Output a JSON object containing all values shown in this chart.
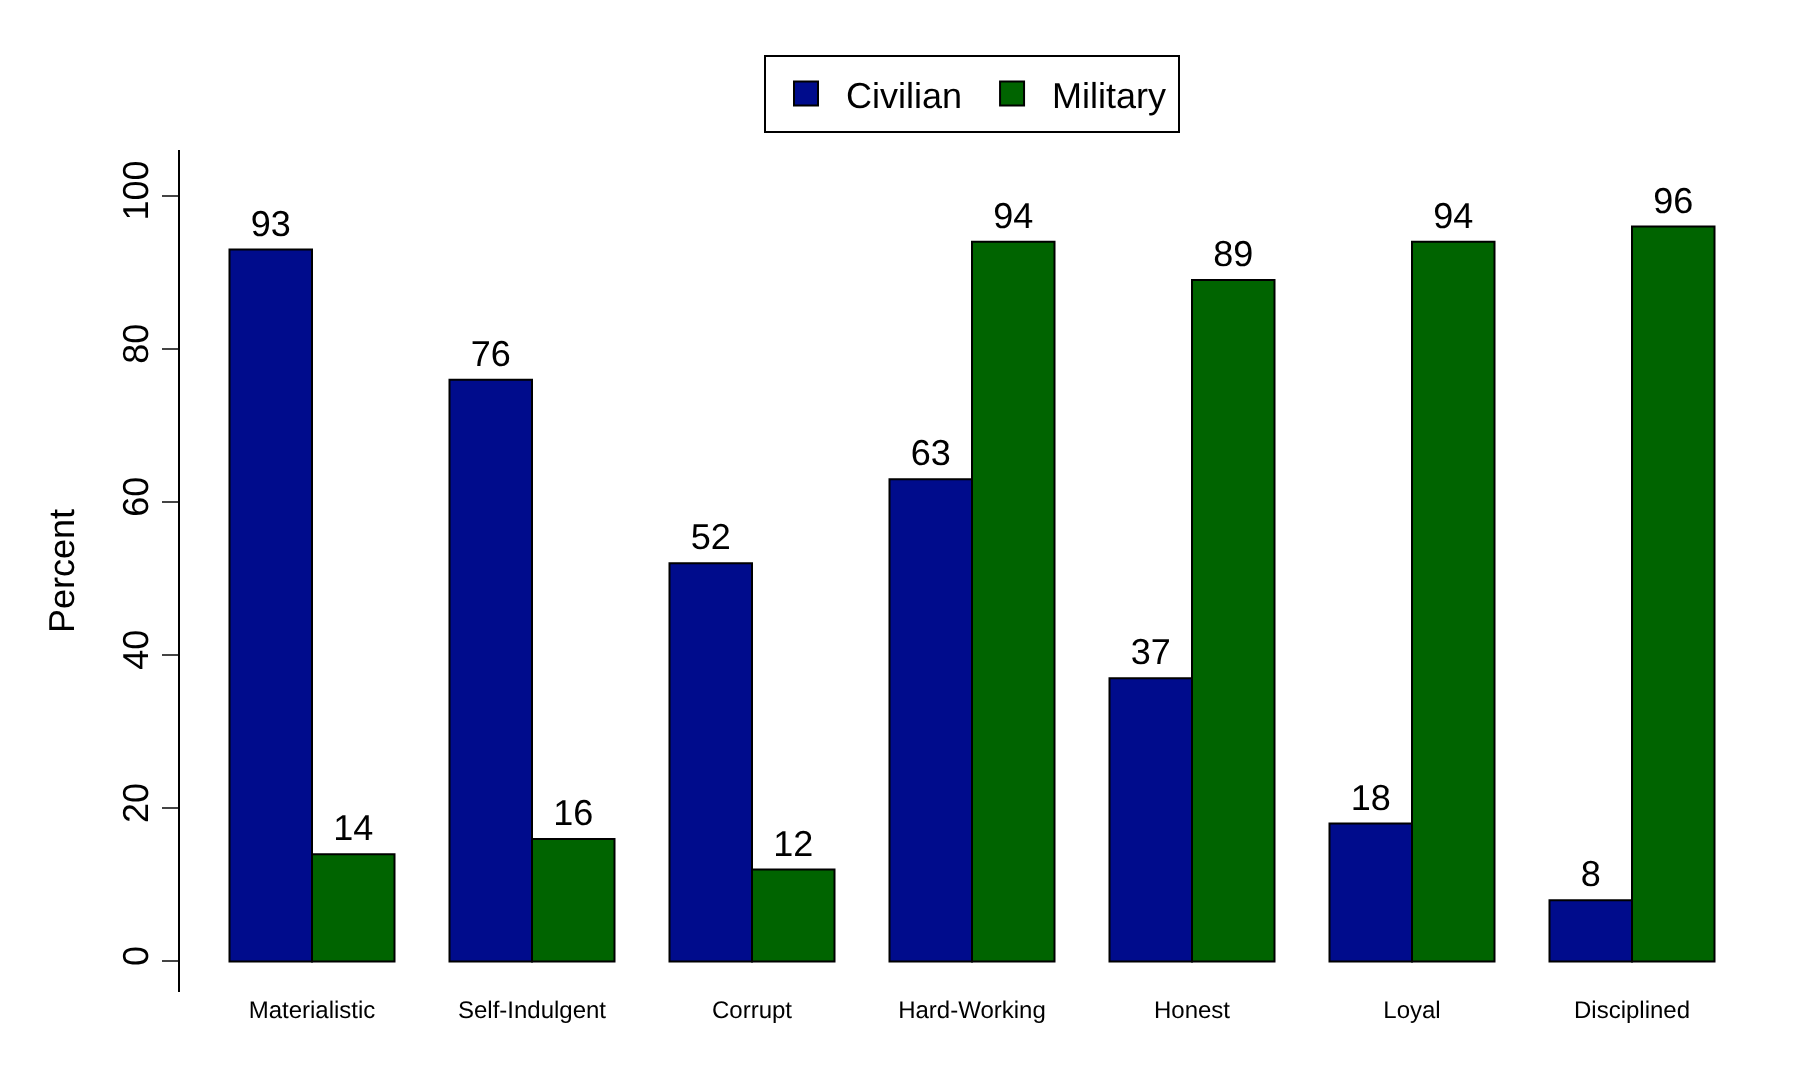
{
  "chart_data": {
    "type": "bar",
    "ylabel": "Percent",
    "categories": [
      "Materialistic",
      "Self-Indulgent",
      "Corrupt",
      "Hard-Working",
      "Honest",
      "Loyal",
      "Disciplined"
    ],
    "series": [
      {
        "name": "Civilian",
        "color": "#000c8c",
        "values": [
          93,
          76,
          52,
          63,
          37,
          18,
          8
        ]
      },
      {
        "name": "Military",
        "color": "#006400",
        "values": [
          14,
          16,
          12,
          94,
          89,
          94,
          96
        ]
      }
    ],
    "ylim": [
      -4,
      106
    ],
    "yticks": [
      0,
      20,
      40,
      60,
      80,
      100
    ],
    "legend": "top",
    "data_labels": true
  }
}
